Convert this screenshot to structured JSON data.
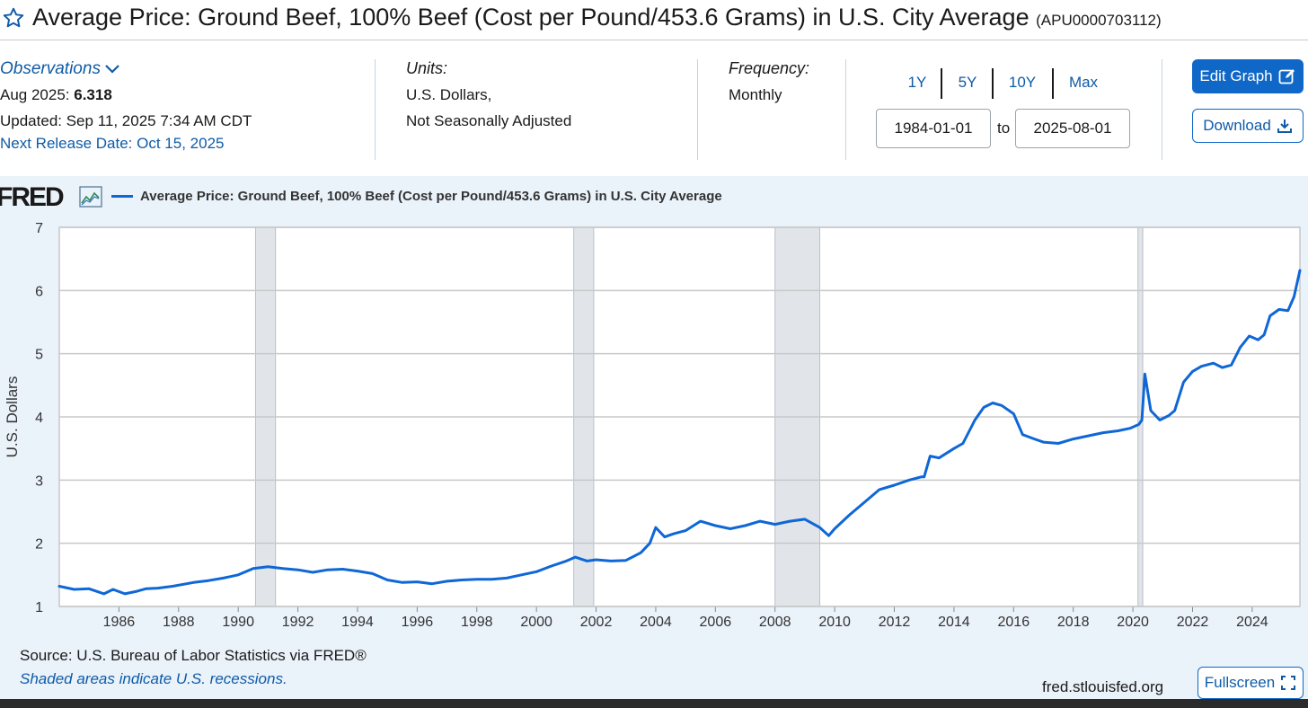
{
  "header": {
    "title": "Average Price: Ground Beef, 100% Beef (Cost per Pound/453.6 Grams) in U.S. City Average",
    "series_id": "(APU0000703112)"
  },
  "observations": {
    "label": "Observations",
    "period": "Aug 2025:",
    "value": "6.318",
    "updated": "Updated: Sep 11, 2025 7:34 AM CDT",
    "next_release": "Next Release Date: Oct 15, 2025"
  },
  "units": {
    "label": "Units:",
    "line1": "U.S. Dollars,",
    "line2": "Not Seasonally Adjusted"
  },
  "frequency": {
    "label": "Frequency:",
    "value": "Monthly"
  },
  "range": {
    "buttons": [
      "1Y",
      "5Y",
      "10Y",
      "Max"
    ],
    "start": "1984-01-01",
    "to": "to",
    "end": "2025-08-01"
  },
  "actions": {
    "edit": "Edit Graph",
    "download": "Download",
    "fullscreen": "Fullscreen"
  },
  "logo": "FRED",
  "footer": {
    "source": "Source: U.S. Bureau of Labor Statistics via FRED®",
    "shaded": "Shaded areas indicate U.S. recessions.",
    "url": "fred.stlouisfed.org"
  },
  "colors": {
    "line": "#0f67d6",
    "recession": "#e1e5ea",
    "panel": "#eaf2fa",
    "accent": "#0f67c7"
  },
  "chart_data": {
    "type": "line",
    "title": "Average Price: Ground Beef, 100% Beef (Cost per Pound/453.6 Grams) in U.S. City Average",
    "xlabel": "",
    "ylabel": "U.S. Dollars",
    "xlim": [
      1984.0,
      2025.6
    ],
    "ylim": [
      1,
      7
    ],
    "yticks": [
      1,
      2,
      3,
      4,
      5,
      6,
      7
    ],
    "xticks": [
      1986,
      1988,
      1990,
      1992,
      1994,
      1996,
      1998,
      2000,
      2002,
      2004,
      2006,
      2008,
      2010,
      2012,
      2014,
      2016,
      2018,
      2020,
      2022,
      2024
    ],
    "recessions": [
      [
        1990.58,
        1991.25
      ],
      [
        2001.25,
        2001.92
      ],
      [
        2008.0,
        2009.5
      ],
      [
        2020.17,
        2020.33
      ]
    ],
    "series": [
      {
        "name": "Average Price: Ground Beef, 100% Beef (Cost per Pound/453.6 Grams) in U.S. City Average",
        "x": [
          1984.0,
          1984.5,
          1985.0,
          1985.5,
          1985.8,
          1986.2,
          1986.6,
          1986.9,
          1987.3,
          1987.8,
          1988.5,
          1989.0,
          1989.5,
          1990.0,
          1990.5,
          1991.0,
          1991.5,
          1992.0,
          1992.5,
          1993.0,
          1993.5,
          1994.0,
          1994.5,
          1995.0,
          1995.5,
          1996.0,
          1996.5,
          1997.0,
          1997.5,
          1998.0,
          1998.5,
          1999.0,
          1999.5,
          2000.0,
          2000.5,
          2001.0,
          2001.3,
          2001.7,
          2002.0,
          2002.5,
          2003.0,
          2003.5,
          2003.8,
          2004.0,
          2004.3,
          2004.6,
          2005.0,
          2005.5,
          2006.0,
          2006.5,
          2007.0,
          2007.5,
          2008.0,
          2008.5,
          2009.0,
          2009.5,
          2009.8,
          2010.0,
          2010.5,
          2011.0,
          2011.5,
          2012.0,
          2012.5,
          2012.9,
          2013.0,
          2013.2,
          2013.5,
          2014.0,
          2014.3,
          2014.7,
          2015.0,
          2015.3,
          2015.6,
          2016.0,
          2016.3,
          2016.7,
          2017.0,
          2017.5,
          2018.0,
          2018.5,
          2019.0,
          2019.5,
          2019.9,
          2020.2,
          2020.3,
          2020.4,
          2020.6,
          2020.9,
          2021.2,
          2021.4,
          2021.7,
          2022.0,
          2022.3,
          2022.7,
          2023.0,
          2023.3,
          2023.6,
          2023.9,
          2024.2,
          2024.4,
          2024.6,
          2024.9,
          2025.2,
          2025.4,
          2025.6
        ],
        "values": [
          1.32,
          1.27,
          1.28,
          1.2,
          1.27,
          1.2,
          1.24,
          1.28,
          1.29,
          1.32,
          1.38,
          1.41,
          1.45,
          1.5,
          1.6,
          1.63,
          1.6,
          1.58,
          1.54,
          1.58,
          1.59,
          1.56,
          1.52,
          1.42,
          1.38,
          1.39,
          1.36,
          1.4,
          1.42,
          1.43,
          1.43,
          1.45,
          1.5,
          1.55,
          1.64,
          1.72,
          1.78,
          1.72,
          1.74,
          1.72,
          1.73,
          1.85,
          2.0,
          2.25,
          2.1,
          2.15,
          2.2,
          2.35,
          2.28,
          2.23,
          2.28,
          2.35,
          2.3,
          2.35,
          2.38,
          2.25,
          2.12,
          2.23,
          2.45,
          2.65,
          2.85,
          2.92,
          3.0,
          3.05,
          3.05,
          3.38,
          3.35,
          3.5,
          3.58,
          3.95,
          4.15,
          4.22,
          4.18,
          4.05,
          3.72,
          3.65,
          3.6,
          3.58,
          3.65,
          3.7,
          3.75,
          3.78,
          3.82,
          3.88,
          3.95,
          4.68,
          4.1,
          3.95,
          4.02,
          4.1,
          4.55,
          4.72,
          4.8,
          4.85,
          4.78,
          4.82,
          5.1,
          5.28,
          5.22,
          5.3,
          5.6,
          5.7,
          5.68,
          5.9,
          6.318
        ]
      }
    ]
  }
}
